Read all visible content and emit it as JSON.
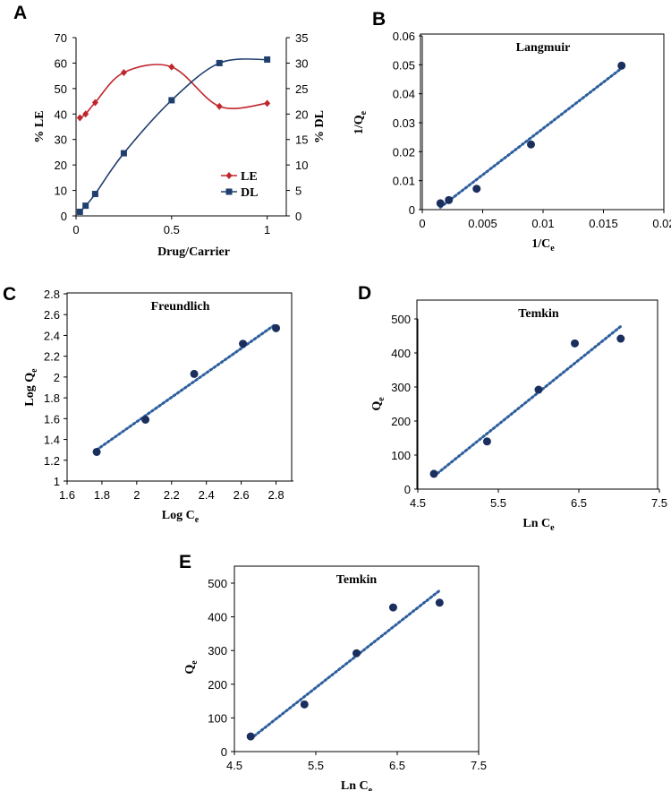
{
  "colors": {
    "le": "#c0272d",
    "dl": "#1f3f6e",
    "marker": "#1b2f5e",
    "trend": "#2e5f9e",
    "frame": "#000000"
  },
  "chart_data": [
    {
      "id": "A",
      "panel_label": "A",
      "type": "line",
      "title": "",
      "xlabel": "Drug/Carrier",
      "ylabel": "% LE",
      "y2label": "% DL",
      "xlim": [
        0,
        1.1
      ],
      "ylim": [
        0,
        70
      ],
      "y2lim": [
        0,
        35
      ],
      "xticks": [
        "0",
        "0.5",
        "1"
      ],
      "yticks": [
        "0",
        "10",
        "20",
        "30",
        "40",
        "50",
        "60",
        "70"
      ],
      "y2ticks": [
        "0",
        "5",
        "10",
        "15",
        "20",
        "25",
        "30",
        "35"
      ],
      "legend_position": "right-middle",
      "series": [
        {
          "name": "LE",
          "axis": "left",
          "marker": "diamond",
          "x": [
            0.02,
            0.05,
            0.1,
            0.25,
            0.5,
            0.75,
            1.0
          ],
          "values": [
            38.5,
            40,
            44.5,
            56.3,
            58.5,
            43,
            44.2
          ]
        },
        {
          "name": "DL",
          "axis": "right",
          "marker": "square",
          "x": [
            0.02,
            0.05,
            0.1,
            0.25,
            0.5,
            0.75,
            1.0
          ],
          "values": [
            0.8,
            2,
            4.3,
            12.3,
            22.7,
            30,
            30.7
          ]
        }
      ]
    },
    {
      "id": "B",
      "panel_label": "B",
      "type": "scatter",
      "title": "Langmuir",
      "xlabel_main": "1/C",
      "xlabel_sub": "e",
      "ylabel_main": "1/Q",
      "ylabel_sub": "e",
      "xlim": [
        0,
        0.02
      ],
      "ylim": [
        0,
        0.06
      ],
      "xticks": [
        "0",
        "0.005",
        "0.01",
        "0.015",
        "0.02"
      ],
      "yticks": [
        "0",
        "0.01",
        "0.02",
        "0.03",
        "0.04",
        "0.05",
        "0.06"
      ],
      "x": [
        0.0015,
        0.0022,
        0.0045,
        0.009,
        0.0165
      ],
      "values": [
        0.0022,
        0.0033,
        0.0072,
        0.0225,
        0.0497
      ],
      "trendline": [
        [
          0.0015,
          0.0008
        ],
        [
          0.0165,
          0.0488
        ]
      ]
    },
    {
      "id": "C",
      "panel_label": "C",
      "type": "scatter",
      "title": "Freundlich",
      "xlabel_main": "Log C",
      "xlabel_sub": "e",
      "ylabel_main": "Log Q",
      "ylabel_sub": "e",
      "xlim": [
        1.6,
        2.9
      ],
      "ylim": [
        1,
        2.8
      ],
      "xticks": [
        "1.6",
        "1.8",
        "2",
        "2.2",
        "2.4",
        "2.6",
        "2.8"
      ],
      "yticks": [
        "1",
        "1.2",
        "1.4",
        "1.6",
        "1.8",
        "2",
        "2.2",
        "2.4",
        "2.6",
        "2.8"
      ],
      "x": [
        1.77,
        2.05,
        2.33,
        2.61,
        2.8
      ],
      "values": [
        1.28,
        1.59,
        2.03,
        2.32,
        2.47
      ],
      "trendline": [
        [
          1.77,
          1.3
        ],
        [
          2.8,
          2.51
        ]
      ]
    },
    {
      "id": "D",
      "panel_label": "D",
      "type": "scatter",
      "title": "Temkin",
      "xlabel_main": "Ln C",
      "xlabel_sub": "e",
      "ylabel_main": "Q",
      "ylabel_sub": "e",
      "xlim": [
        4.5,
        7.5
      ],
      "ylim": [
        0,
        500
      ],
      "xticks": [
        "4.5",
        "5.5",
        "6.5",
        "7.5"
      ],
      "yticks": [
        "0",
        "100",
        "200",
        "300",
        "400",
        "500"
      ],
      "x": [
        4.7,
        5.36,
        6.0,
        6.45,
        7.02
      ],
      "values": [
        45,
        140,
        292,
        428,
        442
      ],
      "trendline": [
        [
          4.7,
          38
        ],
        [
          7.02,
          478
        ]
      ]
    },
    {
      "id": "E",
      "panel_label": "E",
      "type": "scatter",
      "title": "Temkin",
      "xlabel_main": "Ln C",
      "xlabel_sub": "e",
      "ylabel_main": "Q",
      "ylabel_sub": "e",
      "xlim": [
        4.5,
        7.5
      ],
      "ylim": [
        0,
        500
      ],
      "xticks": [
        "4.5",
        "5.5",
        "6.5",
        "7.5"
      ],
      "yticks": [
        "0",
        "100",
        "200",
        "300",
        "400",
        "500"
      ],
      "x": [
        4.7,
        5.36,
        6.0,
        6.45,
        7.02
      ],
      "values": [
        45,
        140,
        292,
        428,
        442
      ],
      "trendline": [
        [
          4.7,
          38
        ],
        [
          7.02,
          478
        ]
      ]
    }
  ]
}
